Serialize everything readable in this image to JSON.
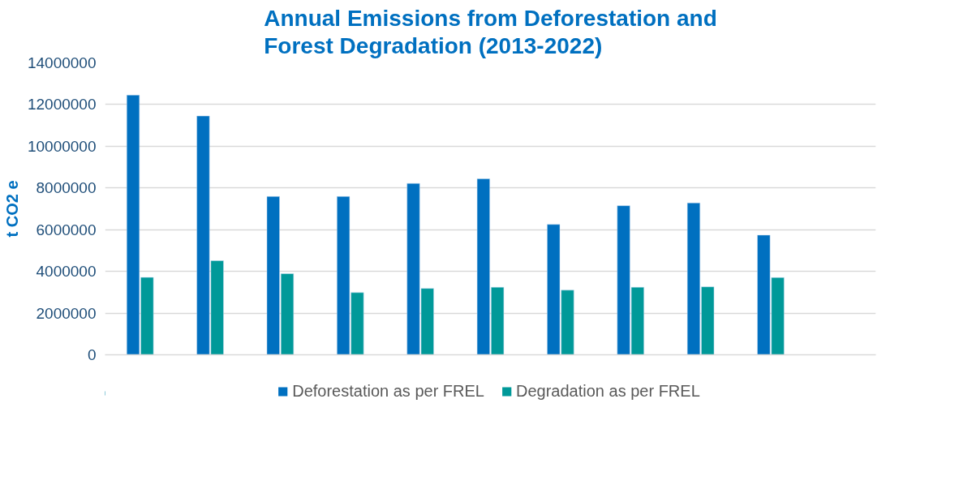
{
  "chart_data": {
    "type": "bar",
    "title": "Annual Emissions from Deforestation and Forest Degradation (2013-2022)",
    "ylabel": "t CO2 e",
    "categories": [
      null,
      null,
      null,
      null,
      null,
      null,
      null,
      null,
      null,
      null,
      null
    ],
    "series": [
      {
        "name": "Deforestation as per FREL",
        "color": "#0070c0",
        "values": [
          12450000,
          11450000,
          7590000,
          7590000,
          8220000,
          8440000,
          6250000,
          7150000,
          7280000,
          5740000,
          null
        ]
      },
      {
        "name": "Degradation as per FREL",
        "color": "#009999",
        "values": [
          3710000,
          4510000,
          3890000,
          2980000,
          3180000,
          3240000,
          3100000,
          3240000,
          3260000,
          3700000,
          null
        ]
      }
    ],
    "ylim": [
      0,
      14000000
    ],
    "yticks": [
      0,
      2000000,
      4000000,
      6000000,
      8000000,
      10000000,
      12000000,
      14000000
    ],
    "grid": "y",
    "legend": "bottom",
    "tick_labels": "y"
  }
}
